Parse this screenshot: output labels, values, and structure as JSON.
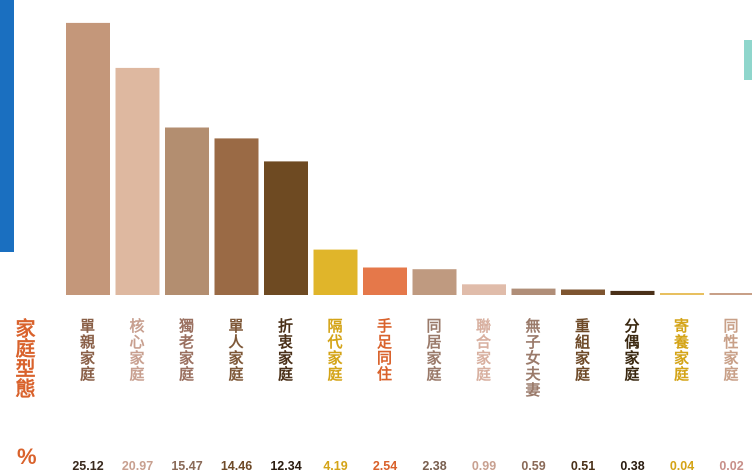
{
  "chart_data": {
    "type": "bar",
    "title": "",
    "axis_title": "家庭型態",
    "unit_symbol": "%",
    "categories": [
      "單親家庭",
      "核心家庭",
      "獨老家庭",
      "單人家庭",
      "折衷家庭",
      "隔代家庭",
      "手足同住",
      "同居家庭",
      "聯合家庭",
      "無子女夫妻",
      "重組家庭",
      "分偶家庭",
      "寄養家庭",
      "同性家庭"
    ],
    "values": [
      25.12,
      20.97,
      15.47,
      14.46,
      12.34,
      4.19,
      2.54,
      2.38,
      0.99,
      0.59,
      0.51,
      0.38,
      0.04,
      0.02
    ],
    "value_labels": [
      "25.12",
      "20.97",
      "15.47",
      "14.46",
      "12.34",
      "4.19",
      "2.54",
      "2.38",
      "0.99",
      "0.59",
      "0.51",
      "0.38",
      "0.04",
      "0.02"
    ],
    "bar_colors": [
      "#c4977a",
      "#deb8a0",
      "#b38e70",
      "#9a6a45",
      "#6e4a22",
      "#e0b52a",
      "#e5784a",
      "#bf9a80",
      "#e0bcaa",
      "#b08e78",
      "#7e5530",
      "#4a3018",
      "#e8c060",
      "#c8a088"
    ],
    "label_colors": [
      "#8a6048",
      "#c8a090",
      "#9a7060",
      "#7e5838",
      "#4a3018",
      "#d4a418",
      "#d9622c",
      "#9a7a6a",
      "#d8b0a0",
      "#9a7a6a",
      "#6e4a28",
      "#3a2810",
      "#d4a418",
      "#c8a088"
    ],
    "value_colors": [
      "#3a2a1e",
      "#c8a090",
      "#8a6a58",
      "#6e4a28",
      "#2a1c10",
      "#d4a418",
      "#d9622c",
      "#7a6050",
      "#c8a090",
      "#8a6a58",
      "#4a3018",
      "#2a1c10",
      "#d4a418",
      "#c8908a"
    ],
    "ylim": [
      0,
      26.5
    ],
    "grid": false,
    "legend": "none"
  }
}
